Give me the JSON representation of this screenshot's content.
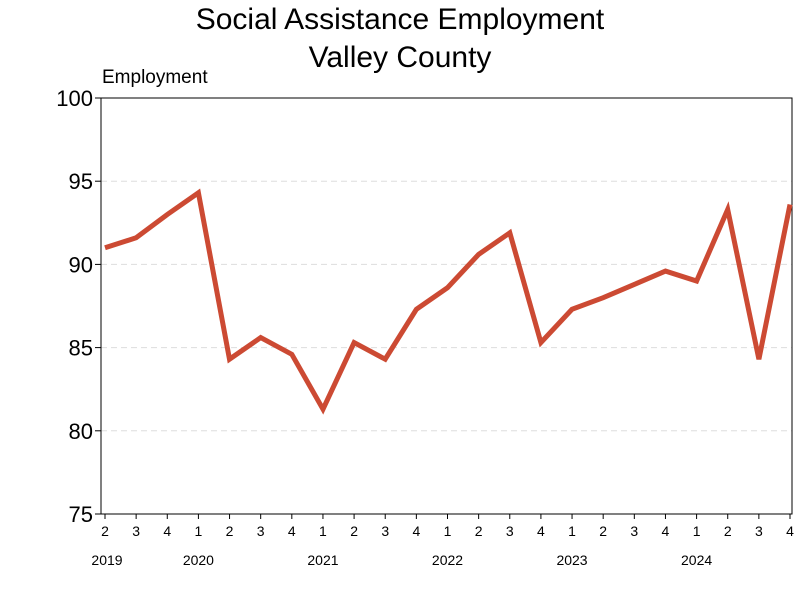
{
  "chart_data": {
    "type": "line",
    "title": "Social Assistance Employment",
    "subtitle": "Valley County",
    "ylabel": "Employment",
    "xlabel": "",
    "ylim": [
      75,
      100
    ],
    "yticks": [
      75,
      80,
      85,
      90,
      95,
      100
    ],
    "grid": "horizontal dashed",
    "quarters": [
      "2",
      "3",
      "4",
      "1",
      "2",
      "3",
      "4",
      "1",
      "2",
      "3",
      "4",
      "1",
      "2",
      "3",
      "4",
      "1",
      "2",
      "3",
      "4",
      "1",
      "2",
      "3",
      "4"
    ],
    "years": [
      {
        "label": "2019",
        "at": 0
      },
      {
        "label": "2020",
        "at": 3
      },
      {
        "label": "2021",
        "at": 7
      },
      {
        "label": "2022",
        "at": 11
      },
      {
        "label": "2023",
        "at": 15
      },
      {
        "label": "2024",
        "at": 19
      }
    ],
    "series": [
      {
        "color": "#cc4a33",
        "values": [
          91.0,
          91.6,
          93.0,
          94.3,
          84.3,
          85.6,
          84.6,
          81.3,
          85.3,
          84.3,
          87.3,
          88.6,
          90.6,
          91.9,
          85.3,
          87.3,
          88.0,
          88.8,
          89.6,
          89.0,
          93.3,
          84.3,
          93.6
        ]
      }
    ]
  }
}
